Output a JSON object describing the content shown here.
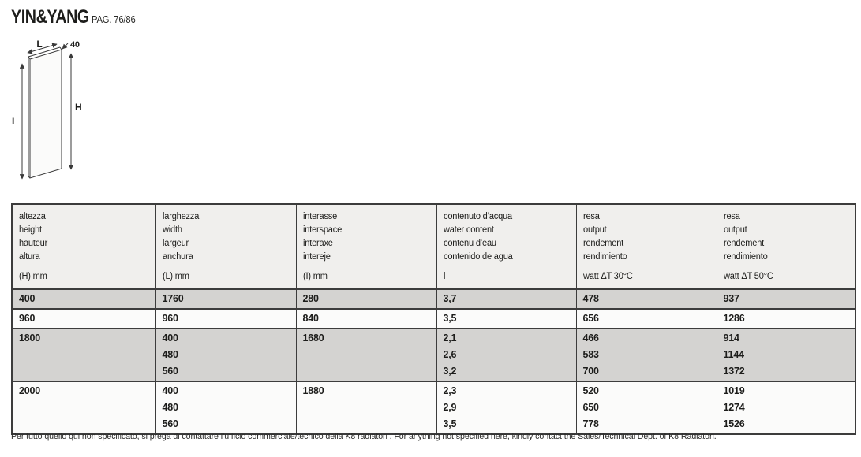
{
  "page": {
    "title": "YIN&YANG",
    "page_ref": "PAG. 76/86",
    "footer": "Per tutto quello qui non specificato, si prega di contattare l’ufficio commerciale/tecnico della K8 radiatori . For anything not specified here, kindly contact the Sales/Technical Dept. of K8 Radiatori."
  },
  "colors": {
    "row_shaded": "#d4d3d1",
    "row_plain": "#fbfbfa",
    "header_bg": "#f0efed",
    "border": "#3c3c3c",
    "text": "#1d1d1b"
  },
  "diagram": {
    "labels": {
      "width_label": "L",
      "depth_label": "40",
      "height_label": "H",
      "interaxis_label": "I"
    }
  },
  "table": {
    "columns": [
      {
        "lines": [
          "altezza",
          "height",
          "hauteur",
          "altura"
        ],
        "unit": "(H) mm"
      },
      {
        "lines": [
          "larghezza",
          "width",
          "largeur",
          "anchura"
        ],
        "unit": "(L) mm"
      },
      {
        "lines": [
          "interasse",
          "interspace",
          "interaxe",
          "intereje"
        ],
        "unit": "(I) mm"
      },
      {
        "lines": [
          "contenuto d’acqua",
          "water content",
          "contenu d’eau",
          "contenido de agua"
        ],
        "unit": "l"
      },
      {
        "lines": [
          "resa",
          "output",
          "rendement",
          "rendimiento"
        ],
        "unit": "watt ΔT 30°C"
      },
      {
        "lines": [
          "resa",
          "output",
          "rendement",
          "rendimiento"
        ],
        "unit": "watt ΔT 50°C"
      }
    ],
    "rows": [
      {
        "shaded": true,
        "cells": [
          [
            "400"
          ],
          [
            "1760"
          ],
          [
            "280"
          ],
          [
            "3,7"
          ],
          [
            "478"
          ],
          [
            "937"
          ]
        ]
      },
      {
        "shaded": false,
        "cells": [
          [
            "960"
          ],
          [
            "960"
          ],
          [
            "840"
          ],
          [
            "3,5"
          ],
          [
            "656"
          ],
          [
            "1286"
          ]
        ]
      },
      {
        "shaded": true,
        "cells": [
          [
            "1800"
          ],
          [
            "400",
            "480",
            "560"
          ],
          [
            "1680"
          ],
          [
            "2,1",
            "2,6",
            "3,2"
          ],
          [
            "466",
            "583",
            "700"
          ],
          [
            "914",
            "1144",
            "1372"
          ]
        ]
      },
      {
        "shaded": false,
        "cells": [
          [
            "2000"
          ],
          [
            "400",
            "480",
            "560"
          ],
          [
            "1880"
          ],
          [
            "2,3",
            "2,9",
            "3,5"
          ],
          [
            "520",
            "650",
            "778"
          ],
          [
            "1019",
            "1274",
            "1526"
          ]
        ]
      }
    ]
  }
}
